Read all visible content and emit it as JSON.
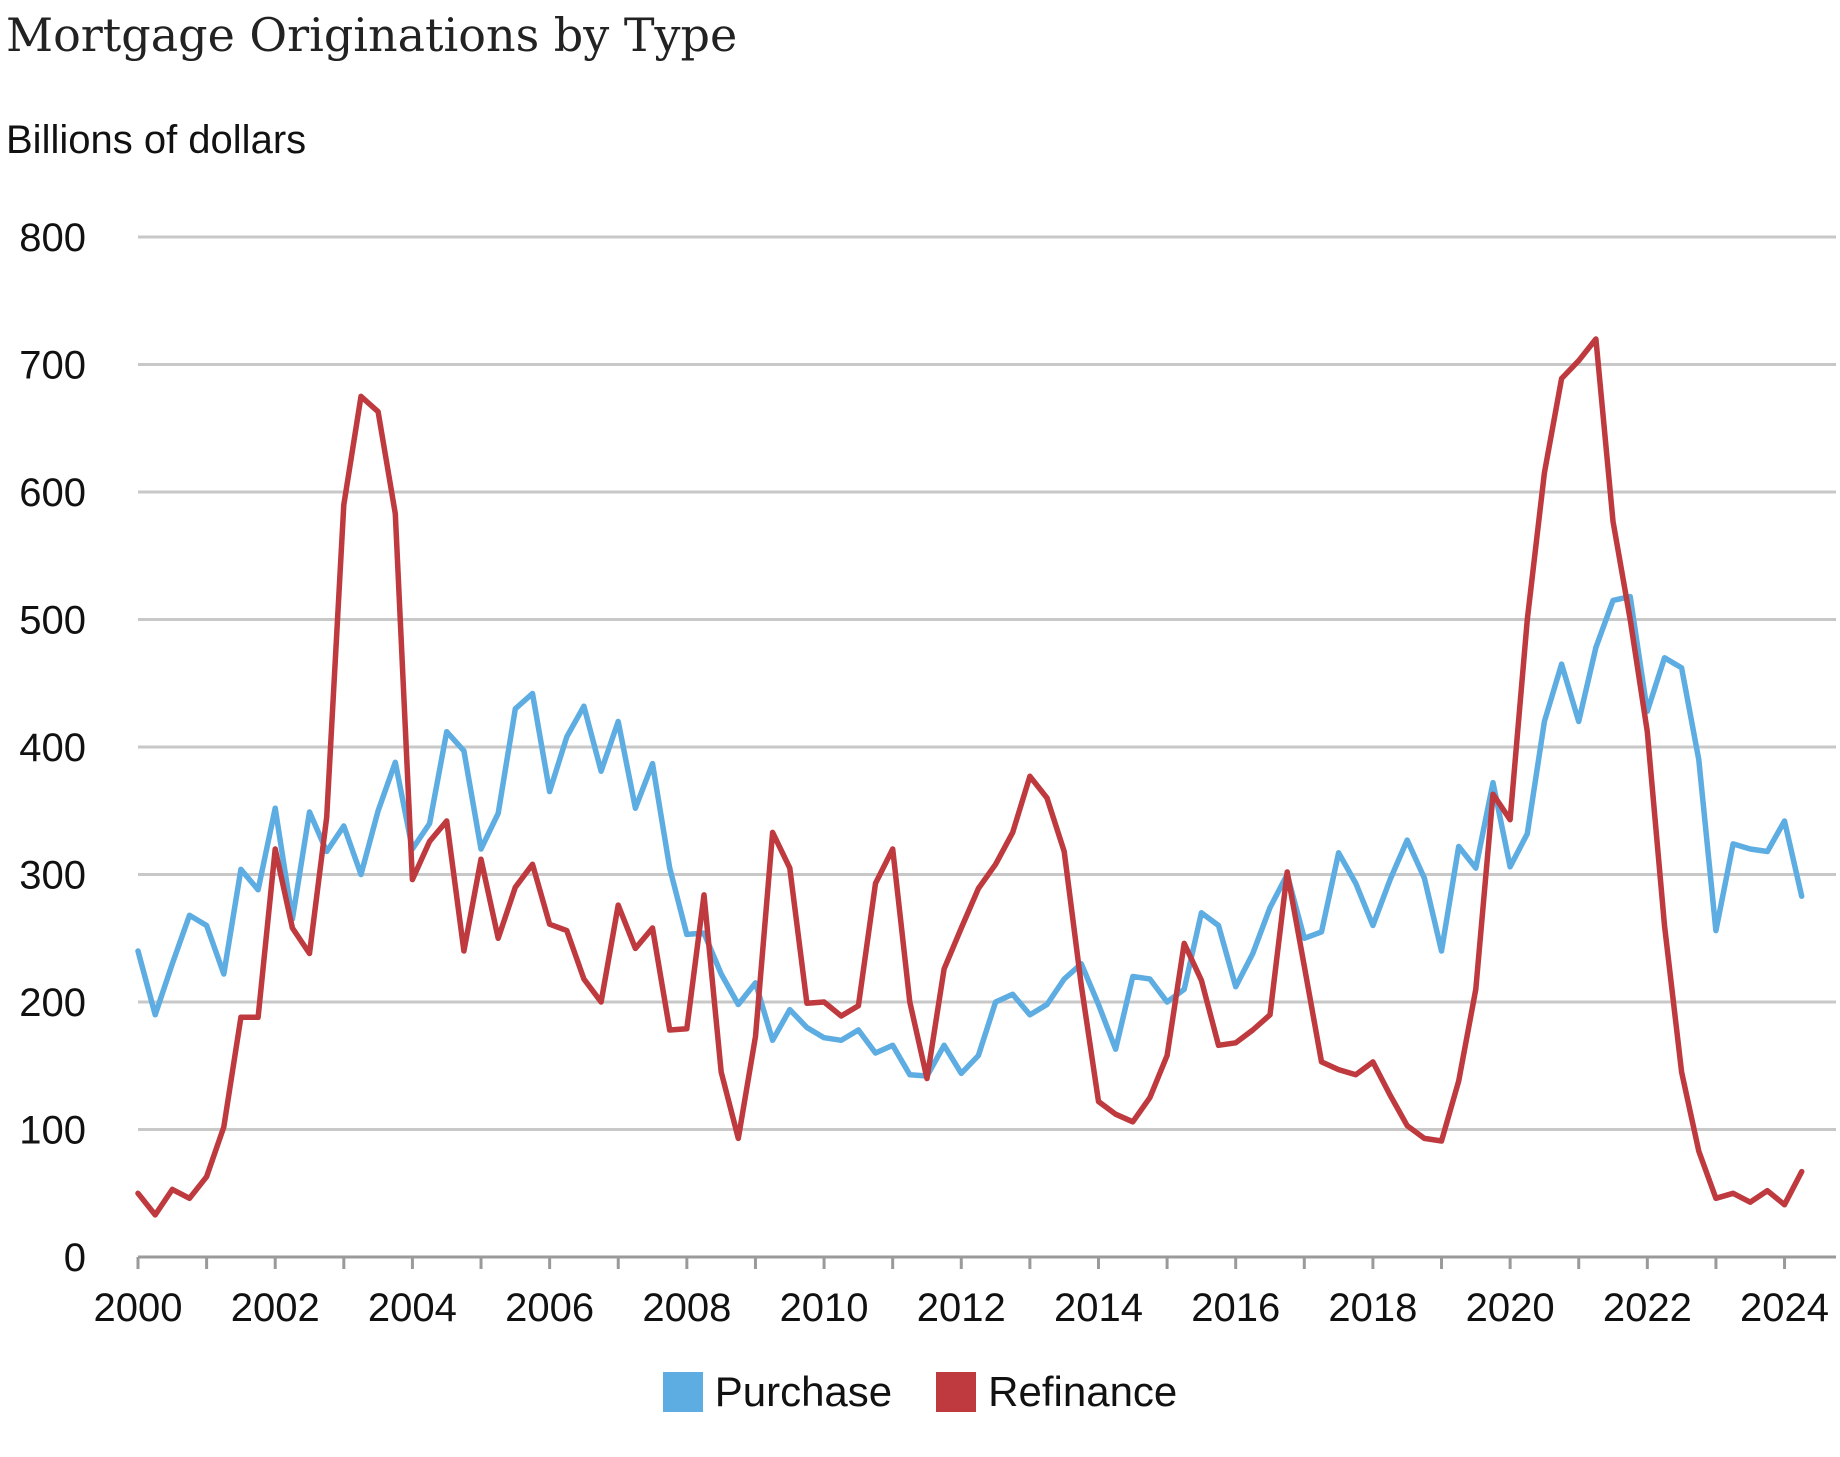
{
  "colors": {
    "purchase": "#5DADE2",
    "refinance": "#BE3A3E",
    "grid": "#C8C8C8",
    "axis": "#9A9A9A"
  },
  "chart_data": {
    "type": "line",
    "title": "Mortgage Originations by Type",
    "subtitle": "Billions of dollars",
    "xlabel": "",
    "ylabel": "",
    "ylim": [
      0,
      800
    ],
    "xlim": [
      2000,
      2024.75
    ],
    "y_ticks": [
      0,
      100,
      200,
      300,
      400,
      500,
      600,
      700,
      800
    ],
    "x_ticks": [
      2000,
      2002,
      2004,
      2006,
      2008,
      2010,
      2012,
      2014,
      2016,
      2018,
      2020,
      2022,
      2024
    ],
    "grid": true,
    "legend_position": "bottom-center",
    "x_start_year": 2000,
    "x_step": 0.25,
    "series": [
      {
        "name": "Purchase",
        "color": "#5DADE2",
        "values": [
          240,
          190,
          230,
          268,
          260,
          222,
          304,
          288,
          352,
          265,
          349,
          318,
          338,
          300,
          350,
          388,
          320,
          340,
          412,
          397,
          320,
          348,
          430,
          442,
          365,
          408,
          432,
          381,
          420,
          352,
          387,
          305,
          253,
          254,
          222,
          198,
          215,
          170,
          194,
          180,
          172,
          170,
          178,
          160,
          166,
          143,
          142,
          166,
          144,
          158,
          200,
          206,
          190,
          198,
          218,
          230,
          198,
          163,
          220,
          218,
          200,
          210,
          270,
          260,
          212,
          238,
          274,
          300,
          250,
          255,
          317,
          293,
          260,
          296,
          327,
          297,
          240,
          322,
          305,
          372,
          306,
          332,
          420,
          465,
          420,
          478,
          515,
          518,
          428,
          470,
          462,
          390,
          256,
          324,
          320,
          318,
          342,
          283
        ]
      },
      {
        "name": "Refinance",
        "color": "#BE3A3E",
        "values": [
          50,
          33,
          53,
          46,
          63,
          102,
          188,
          188,
          320,
          258,
          238,
          345,
          590,
          675,
          663,
          583,
          296,
          326,
          342,
          240,
          312,
          250,
          290,
          308,
          261,
          256,
          218,
          200,
          276,
          242,
          258,
          178,
          179,
          284,
          145,
          93,
          173,
          333,
          305,
          199,
          200,
          189,
          197,
          293,
          320,
          200,
          140,
          226,
          258,
          289,
          308,
          333,
          377,
          360,
          318,
          213,
          122,
          112,
          106,
          125,
          158,
          246,
          217,
          166,
          168,
          178,
          190,
          302,
          228,
          153,
          147,
          143,
          153,
          127,
          103,
          93,
          91,
          138,
          210,
          363,
          343,
          500,
          615,
          689,
          703,
          720,
          577,
          500,
          412,
          260,
          145,
          83,
          46,
          50,
          43,
          52,
          41,
          67
        ]
      }
    ]
  },
  "legend": {
    "purchase_label": "Purchase",
    "refinance_label": "Refinance"
  }
}
